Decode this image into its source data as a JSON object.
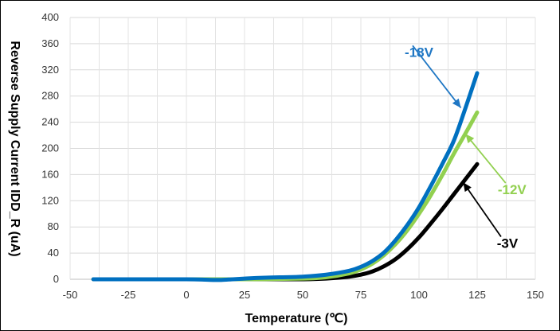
{
  "chart_data": {
    "type": "line",
    "title": "",
    "xlabel": "Temperature (℃)",
    "ylabel": "Reverse Supply Current  IDD_R (uA)",
    "xlim": [
      -50,
      150
    ],
    "ylim": [
      0,
      400
    ],
    "xticks": [
      -50,
      -25,
      0,
      25,
      50,
      75,
      100,
      125,
      150
    ],
    "yticks": [
      0,
      40,
      80,
      120,
      160,
      200,
      240,
      280,
      320,
      360,
      400
    ],
    "grid": true,
    "legend": "none",
    "series": [
      {
        "name": "-3V",
        "color": "#000000",
        "x": [
          -40,
          -25,
          0,
          25,
          50,
          60,
          70,
          75,
          80,
          85,
          90,
          95,
          100,
          105,
          110,
          115,
          120,
          125
        ],
        "y": [
          0,
          0,
          0,
          0,
          0,
          1,
          4,
          7,
          12,
          20,
          31,
          46,
          64,
          85,
          107,
          130,
          153,
          176
        ]
      },
      {
        "name": "-12V",
        "color": "#92d050",
        "x": [
          -40,
          -25,
          0,
          25,
          50,
          60,
          70,
          75,
          80,
          85,
          90,
          95,
          100,
          105,
          110,
          115,
          120,
          125
        ],
        "y": [
          0,
          0,
          0,
          0,
          1,
          3,
          9,
          15,
          24,
          37,
          54,
          75,
          100,
          128,
          159,
          192,
          223,
          255
        ]
      },
      {
        "name": "-18V",
        "color": "#0070c0",
        "x": [
          -40,
          -25,
          0,
          12,
          15,
          20,
          25,
          30,
          40,
          50,
          60,
          70,
          75,
          80,
          85,
          90,
          95,
          100,
          105,
          110,
          115,
          120,
          125
        ],
        "y": [
          0,
          0,
          0,
          -1,
          -1,
          0,
          1,
          2,
          3,
          4,
          7,
          13,
          19,
          28,
          41,
          60,
          83,
          110,
          142,
          176,
          212,
          262,
          315
        ]
      }
    ],
    "annotations": [
      {
        "text": "-18V",
        "color": "#1f77c4",
        "x": 100,
        "y": 340,
        "arrow_to": [
          118,
          262
        ]
      },
      {
        "text": "-12V",
        "color": "#92d050",
        "x": 140,
        "y": 130,
        "arrow_to": [
          120,
          222
        ]
      },
      {
        "text": "-3V",
        "color": "#000000",
        "x": 138,
        "y": 48,
        "arrow_to": [
          119,
          148
        ]
      }
    ]
  }
}
